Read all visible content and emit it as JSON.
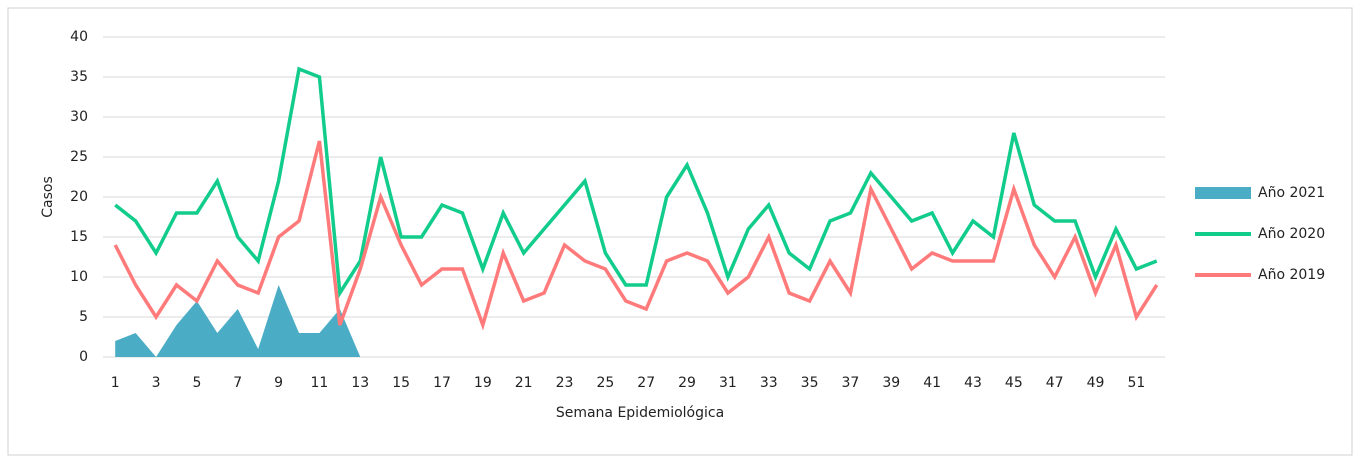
{
  "chart_data": {
    "type": "line",
    "x_label": "Semana Epidemiológica",
    "y_label": "Casos",
    "categories": [
      1,
      null,
      3,
      null,
      5,
      null,
      7,
      null,
      9,
      null,
      11,
      null,
      13,
      null,
      15,
      null,
      17,
      null,
      19,
      null,
      21,
      null,
      23,
      null,
      25,
      null,
      27,
      null,
      29,
      null,
      31,
      null,
      33,
      null,
      35,
      null,
      37,
      null,
      39,
      null,
      41,
      null,
      43,
      null,
      45,
      null,
      47,
      null,
      49,
      null,
      51,
      null
    ],
    "series": [
      {
        "name": "Año 2021",
        "type": "area",
        "color": "#4bacc6",
        "values": [
          2,
          3,
          0,
          4,
          7,
          3,
          6,
          1,
          9,
          3,
          3,
          6,
          0,
          null,
          null,
          null,
          null,
          null,
          null,
          null,
          null,
          null,
          null,
          null,
          null,
          null,
          null,
          null,
          null,
          null,
          null,
          null,
          null,
          null,
          null,
          null,
          null,
          null,
          null,
          null,
          null,
          null,
          null,
          null,
          null,
          null,
          null,
          null,
          null,
          null,
          null,
          null
        ]
      },
      {
        "name": "Año 2020",
        "type": "line",
        "color": "#12cc8c",
        "values": [
          19,
          17,
          13,
          18,
          18,
          22,
          15,
          12,
          22,
          36,
          35,
          8,
          12,
          25,
          15,
          15,
          19,
          18,
          11,
          18,
          13,
          16,
          19,
          22,
          13,
          9,
          9,
          20,
          24,
          18,
          10,
          16,
          19,
          13,
          11,
          17,
          18,
          23,
          20,
          17,
          18,
          13,
          17,
          15,
          28,
          19,
          17,
          17,
          10,
          16,
          11,
          12
        ]
      },
      {
        "name": "Año 2019",
        "type": "line",
        "color": "#ff7a7a",
        "values": [
          14,
          9,
          5,
          9,
          7,
          12,
          9,
          8,
          15,
          17,
          27,
          4,
          11,
          20,
          14,
          9,
          11,
          11,
          4,
          13,
          7,
          8,
          14,
          12,
          11,
          7,
          6,
          12,
          13,
          12,
          8,
          10,
          15,
          8,
          7,
          12,
          8,
          21,
          16,
          11,
          13,
          12,
          12,
          12,
          21,
          14,
          10,
          15,
          8,
          14,
          5,
          9
        ]
      }
    ],
    "ylim": [
      0,
      40
    ],
    "yticks": [
      0,
      5,
      10,
      15,
      20,
      25,
      30,
      35,
      40
    ],
    "grid": true,
    "legend": "right"
  }
}
